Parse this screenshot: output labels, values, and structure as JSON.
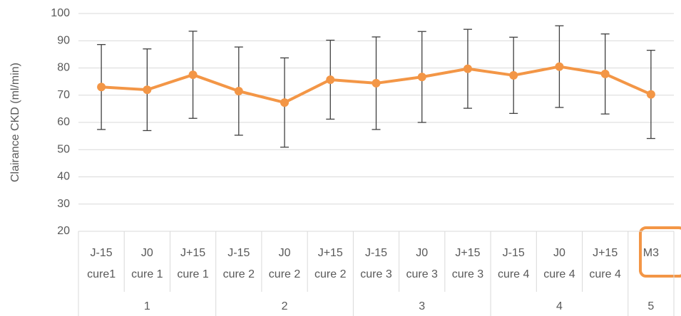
{
  "chart_data": {
    "type": "line",
    "y_label": "Clairance CKD  (ml/min)",
    "groups": [
      {
        "name": "1",
        "categories": [
          [
            "J-15",
            "cure1"
          ],
          [
            "J0",
            "cure 1"
          ],
          [
            "J+15",
            "cure 1"
          ]
        ]
      },
      {
        "name": "2",
        "categories": [
          [
            "J-15",
            "cure 2"
          ],
          [
            "J0",
            "cure 2"
          ],
          [
            "J+15",
            "cure 2"
          ]
        ]
      },
      {
        "name": "3",
        "categories": [
          [
            "J-15",
            "cure 3"
          ],
          [
            "J0",
            "cure 3"
          ],
          [
            "J+15",
            "cure 3"
          ]
        ]
      },
      {
        "name": "4",
        "categories": [
          [
            "J-15",
            "cure 4"
          ],
          [
            "J0",
            "cure 4"
          ],
          [
            "J+15",
            "cure 4"
          ]
        ]
      },
      {
        "name": "5",
        "categories": [
          [
            "M3"
          ]
        ]
      }
    ],
    "series": [
      {
        "color": "#f39646",
        "values": [
          73,
          72,
          77.5,
          71.5,
          67.3,
          75.7,
          74.4,
          76.7,
          79.7,
          77.3,
          80.5,
          77.8,
          70.3
        ],
        "errors": [
          15.6,
          15,
          16,
          16.2,
          16.4,
          14.5,
          17,
          16.7,
          14.5,
          14,
          15,
          14.7,
          16.2
        ],
        "error_color": "#404040"
      }
    ],
    "ylim": [
      20,
      100
    ],
    "yticks": [
      20,
      30,
      40,
      50,
      60,
      70,
      80,
      90,
      100
    ],
    "grid": true
  }
}
